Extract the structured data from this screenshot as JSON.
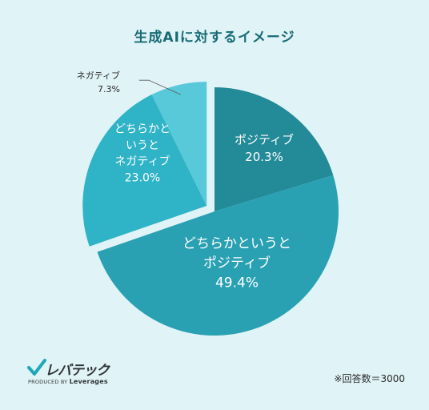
{
  "chart_data": {
    "type": "pie",
    "title": "生成AIに対するイメージ",
    "slices": [
      {
        "label_lines": [
          "ポジティブ"
        ],
        "value": 20.3,
        "value_label": "20.3%",
        "color": "#238a98",
        "label_placement": "inside"
      },
      {
        "label_lines": [
          "どちらかというと",
          "ポジティブ"
        ],
        "value": 49.4,
        "value_label": "49.4%",
        "color": "#2aa1b3",
        "label_placement": "inside"
      },
      {
        "label_lines": [
          "どちらかと",
          "いうと",
          "ネガティブ"
        ],
        "value": 23.0,
        "value_label": "23.0%",
        "color": "#2fb3c6",
        "label_placement": "inside",
        "exploded": true
      },
      {
        "label_lines": [
          "ネガティブ"
        ],
        "value": 7.3,
        "value_label": "7.3%",
        "color": "#58c9d8",
        "label_placement": "outside",
        "exploded": true
      }
    ],
    "note": "※回答数＝3000"
  },
  "logo": {
    "name": "レバテック",
    "produced_by": "PRODUCED BY",
    "brand": "Leverages"
  }
}
